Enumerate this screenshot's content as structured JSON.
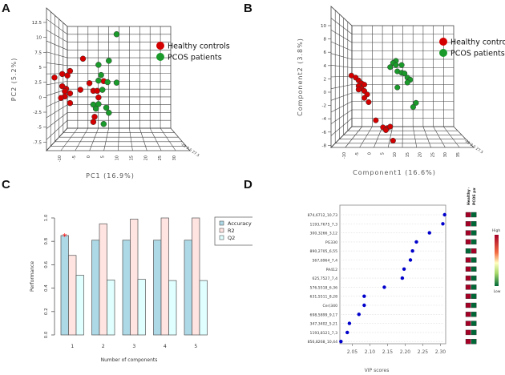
{
  "panels": {
    "A": "A",
    "B": "B",
    "C": "C",
    "D": "D"
  },
  "legend_groups": {
    "healthy": "Healthy controls",
    "pcos": "PCOS patients"
  },
  "colors": {
    "healthy": "#d40000",
    "pcos": "#1a9a2a",
    "accuracy": "#add8e6",
    "r2": "#ffe4e1",
    "q2": "#e0ffff",
    "vip_dot": "#0000cc",
    "heat_high": "#a50026",
    "heat_low": "#006837",
    "star": "#ff0000"
  },
  "chart_data": [
    {
      "id": "A",
      "type": "scatter",
      "title": "",
      "xlabel": "PC1 (16.9%)",
      "ylabel": "PC2 (5.2%)",
      "xlim": [
        -12,
        32
      ],
      "ylim": [
        -9,
        13
      ],
      "x_ticks": [
        "-10",
        "-5",
        "0",
        "5",
        "10",
        "15",
        "20",
        "25",
        "30"
      ],
      "y_ticks": [
        "12.5",
        "10",
        "7.5",
        "5",
        "2.5",
        "0",
        "-2.5",
        "-5",
        "-7.5"
      ],
      "legend": [
        "Healthy controls",
        "PCOS patients"
      ],
      "legend_position": "top-right",
      "series": [
        {
          "name": "Healthy controls",
          "points": [
            [
              -1,
              6.2
            ],
            [
              -6,
              3.8
            ],
            [
              -9,
              3.2
            ],
            [
              -7,
              2.9
            ],
            [
              -12,
              2.5
            ],
            [
              -9,
              0.8
            ],
            [
              -7.5,
              0.3
            ],
            [
              -8,
              -0.2
            ],
            [
              -6,
              -0.6
            ],
            [
              -8,
              -1.2
            ],
            [
              -9.5,
              -1.5
            ],
            [
              -2,
              0.1
            ],
            [
              1.5,
              1.4
            ],
            [
              3,
              -0.1
            ],
            [
              4.5,
              -0.1
            ],
            [
              5,
              -1.4
            ],
            [
              7,
              1.8
            ],
            [
              -6,
              -2.5
            ],
            [
              3.5,
              -5.2
            ],
            [
              3,
              -6.2
            ]
          ]
        },
        {
          "name": "PCOS patients",
          "points": [
            [
              12,
              11
            ],
            [
              9,
              5.8
            ],
            [
              5,
              5
            ],
            [
              6,
              3
            ],
            [
              5,
              1.9
            ],
            [
              8.5,
              1.6
            ],
            [
              12,
              1.5
            ],
            [
              6.5,
              0.1
            ],
            [
              3,
              -2.8
            ],
            [
              5,
              -2.7
            ],
            [
              4,
              -3.6
            ],
            [
              8,
              -3.4
            ],
            [
              9,
              -4.4
            ],
            [
              7,
              -6.6
            ]
          ]
        }
      ]
    },
    {
      "id": "B",
      "type": "scatter",
      "title": "",
      "xlabel": "Component1 (16.6%)",
      "ylabel": "Component2 (3.8%)",
      "xlim": [
        -12,
        36
      ],
      "ylim": [
        -8,
        11
      ],
      "x_ticks": [
        "-10",
        "-5",
        "0",
        "5",
        "10",
        "15",
        "20",
        "25",
        "30",
        "35"
      ],
      "y_ticks": [
        "10",
        "8",
        "6",
        "4",
        "2",
        "0",
        "-2",
        "-4",
        "-6",
        "-8"
      ],
      "legend": [
        "Healthy controls",
        "PCOS patients"
      ],
      "legend_position": "top-right",
      "series": [
        {
          "name": "Healthy controls",
          "points": [
            [
              -10.5,
              2.5
            ],
            [
              -9,
              2.2
            ],
            [
              -8,
              1.8
            ],
            [
              -7,
              1.4
            ],
            [
              -6,
              1.2
            ],
            [
              -8,
              1
            ],
            [
              -7,
              0.6
            ],
            [
              -8,
              0.5
            ],
            [
              -6,
              0.3
            ],
            [
              -5,
              -0.2
            ],
            [
              -6,
              -0.7
            ],
            [
              -4.5,
              -1.3
            ],
            [
              -2,
              -3.9
            ],
            [
              0.5,
              -4.9
            ],
            [
              2,
              -5
            ],
            [
              3,
              -4.8
            ],
            [
              1.5,
              -5.3
            ],
            [
              4,
              -6.8
            ]
          ]
        },
        {
          "name": "PCOS patients",
          "points": [
            [
              5,
              4.6
            ],
            [
              4,
              4.3
            ],
            [
              5,
              4
            ],
            [
              7,
              4
            ],
            [
              3,
              3.7
            ],
            [
              5.5,
              3.1
            ],
            [
              7,
              2.9
            ],
            [
              8,
              2.8
            ],
            [
              9,
              2.2
            ],
            [
              10,
              1.9
            ],
            [
              9,
              1.5
            ],
            [
              5.5,
              0.8
            ],
            [
              12,
              -1.4
            ],
            [
              11,
              -2
            ]
          ]
        }
      ]
    },
    {
      "id": "C",
      "type": "bar",
      "title": "",
      "xlabel": "Number of components",
      "ylabel": "Performance",
      "ylim": [
        0,
        1
      ],
      "y_ticks": [
        "0.0",
        "0.2",
        "0.4",
        "0.6",
        "0.8",
        "1.0"
      ],
      "categories": [
        "1",
        "2",
        "3",
        "4",
        "5"
      ],
      "series": [
        {
          "name": "Accuracy",
          "values": [
            0.85,
            0.81,
            0.81,
            0.81,
            0.81
          ]
        },
        {
          "name": "R2",
          "values": [
            0.68,
            0.95,
            0.99,
            1.0,
            1.0
          ]
        },
        {
          "name": "Q2",
          "values": [
            0.51,
            0.47,
            0.475,
            0.465,
            0.465
          ]
        }
      ],
      "legend": [
        "Accuracy",
        "R2",
        "Q2"
      ],
      "legend_position": "top-right",
      "annotations": [
        {
          "text": "*",
          "category": "1",
          "series": "Accuracy",
          "meaning": "best"
        }
      ]
    },
    {
      "id": "D",
      "type": "scatter",
      "title": "",
      "xlabel": "VIP scores",
      "ylabel": "",
      "xlim": [
        2.015,
        2.315
      ],
      "x_ticks": [
        "2.05",
        "2.10",
        "2.15",
        "2.20",
        "2.25",
        "2.30"
      ],
      "categories": [
        "874,6712_10,73",
        "1193,7675_7,3",
        "300,3266_3,12",
        "PG330",
        "890,2705_6,55",
        "567,6964_7,4",
        "PA412",
        "625,7527_7,4",
        "576,5518_6,36",
        "631,5511_8,28",
        "Cer(340",
        "698,5899_9,17",
        "347,3402_5,21",
        "1193,8121_7,3",
        "856,8268_10,44"
      ],
      "values": [
        2.312,
        2.307,
        2.269,
        2.232,
        2.221,
        2.215,
        2.197,
        2.192,
        2.141,
        2.084,
        2.084,
        2.069,
        2.042,
        2.036,
        2.018
      ],
      "heatmap": {
        "columns": [
          "Healthy controls",
          "PCOS patients"
        ],
        "levels": [
          [
            "High",
            "Low"
          ],
          [
            "High",
            "Low"
          ],
          [
            "High",
            "Low"
          ],
          [
            "High",
            "Low"
          ],
          [
            "Low",
            "High"
          ],
          [
            "High",
            "Low"
          ],
          [
            "High",
            "Low"
          ],
          [
            "High",
            "Low"
          ],
          [
            "High",
            "Low"
          ],
          [
            "High",
            "Low"
          ],
          [
            "High",
            "Low"
          ],
          [
            "High",
            "Low"
          ],
          [
            "High",
            "Low"
          ],
          [
            "High",
            "Low"
          ],
          [
            "High",
            "Low"
          ]
        ],
        "scale_labels": {
          "high": "High",
          "low": "Low"
        }
      }
    }
  ]
}
